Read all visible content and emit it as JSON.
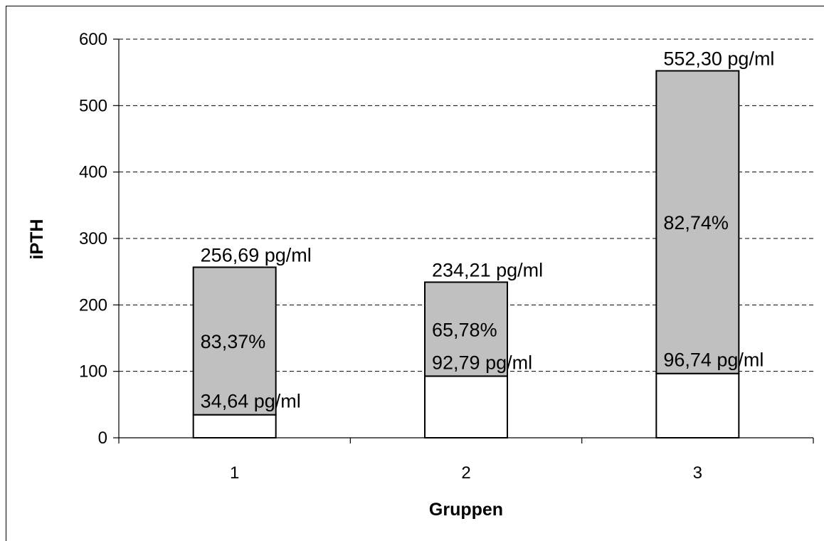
{
  "chart_data": {
    "type": "bar",
    "stacked": true,
    "title": "",
    "xlabel": "Gruppen",
    "ylabel": "iPTH",
    "categories": [
      "1",
      "2",
      "3"
    ],
    "ylim": [
      0,
      600
    ],
    "yticks": [
      0,
      100,
      200,
      300,
      400,
      500,
      600
    ],
    "grid": true,
    "legend": "none",
    "series": [
      {
        "values": [
          34.64,
          92.79,
          96.74
        ],
        "color": "#ffffff"
      },
      {
        "values": [
          222.05,
          141.42,
          455.56
        ],
        "color": "#c0c0c0"
      }
    ],
    "totals": [
      256.69,
      234.21,
      552.3
    ],
    "labels": {
      "base": [
        "34,64 pg/ml",
        "92,79 pg/ml",
        "96,74 pg/ml"
      ],
      "total": [
        "256,69 pg/ml",
        "234,21 pg/ml",
        "552,30 pg/ml"
      ],
      "percent": [
        "83,37%",
        "65,78%",
        "82,74%"
      ]
    }
  }
}
